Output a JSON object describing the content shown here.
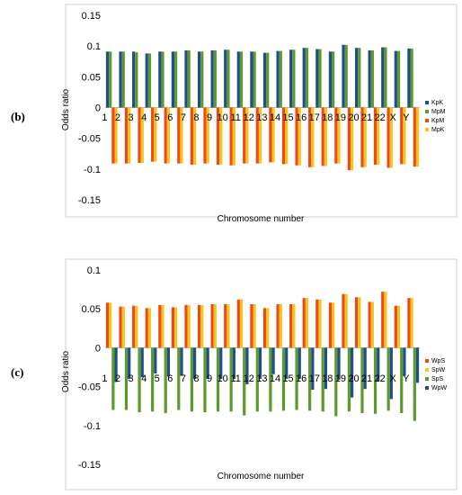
{
  "chart_data": [
    {
      "type": "bar",
      "panel_label": "(b)",
      "ylabel": "Odds ratio",
      "xlabel": "Chromosome number",
      "ylim": [
        -0.15,
        0.15
      ],
      "yticks": [
        "0.15",
        "0.1",
        "0.05",
        "0",
        "-0.05",
        "-0.1",
        "-0.15"
      ],
      "categories": [
        "1",
        "2",
        "3",
        "4",
        "5",
        "6",
        "7",
        "8",
        "9",
        "10",
        "11",
        "12",
        "13",
        "14",
        "15",
        "16",
        "17",
        "18",
        "19",
        "20",
        "21",
        "22",
        "X",
        "Y"
      ],
      "legend_position": "right",
      "series": [
        {
          "name": "KpK",
          "color": "#1f4e8c",
          "values": [
            0.091,
            0.091,
            0.091,
            0.088,
            0.091,
            0.091,
            0.093,
            0.091,
            0.093,
            0.094,
            0.091,
            0.091,
            0.089,
            0.092,
            0.094,
            0.097,
            0.095,
            0.091,
            0.102,
            0.097,
            0.093,
            0.098,
            0.092,
            0.096
          ]
        },
        {
          "name": "MpM",
          "color": "#5c9a2c",
          "values": [
            0.091,
            0.091,
            0.09,
            0.088,
            0.091,
            0.091,
            0.093,
            0.091,
            0.093,
            0.094,
            0.091,
            0.091,
            0.089,
            0.092,
            0.094,
            0.097,
            0.095,
            0.091,
            0.102,
            0.097,
            0.093,
            0.098,
            0.092,
            0.096
          ]
        },
        {
          "name": "KpM",
          "color": "#f04a14",
          "values": [
            -0.091,
            -0.091,
            -0.09,
            -0.088,
            -0.091,
            -0.091,
            -0.093,
            -0.091,
            -0.093,
            -0.094,
            -0.091,
            -0.091,
            -0.089,
            -0.092,
            -0.094,
            -0.097,
            -0.095,
            -0.091,
            -0.102,
            -0.097,
            -0.093,
            -0.098,
            -0.092,
            -0.096
          ]
        },
        {
          "name": "MpK",
          "color": "#f6c41c",
          "values": [
            -0.091,
            -0.091,
            -0.09,
            -0.088,
            -0.091,
            -0.091,
            -0.093,
            -0.091,
            -0.093,
            -0.094,
            -0.091,
            -0.091,
            -0.089,
            -0.092,
            -0.094,
            -0.097,
            -0.095,
            -0.091,
            -0.102,
            -0.097,
            -0.093,
            -0.098,
            -0.092,
            -0.096
          ]
        }
      ]
    },
    {
      "type": "bar",
      "panel_label": "(c)",
      "ylabel": "Odds ratio",
      "xlabel": "Chromosome number",
      "ylim": [
        -0.15,
        0.1
      ],
      "yticks": [
        "0.1",
        "0.05",
        "0",
        "-0.05",
        "-0.1",
        "-0.15"
      ],
      "categories": [
        "1",
        "2",
        "3",
        "4",
        "5",
        "6",
        "7",
        "8",
        "9",
        "10",
        "11",
        "12",
        "13",
        "14",
        "15",
        "16",
        "17",
        "18",
        "19",
        "20",
        "21",
        "22",
        "X",
        "Y"
      ],
      "legend_position": "right",
      "series": [
        {
          "name": "WpS",
          "color": "#f04a14",
          "values": [
            0.058,
            0.053,
            0.054,
            0.051,
            0.055,
            0.052,
            0.055,
            0.055,
            0.056,
            0.056,
            0.062,
            0.056,
            0.051,
            0.056,
            0.056,
            0.064,
            0.062,
            0.058,
            0.069,
            0.065,
            0.059,
            0.072,
            0.054,
            0.064
          ]
        },
        {
          "name": "SpW",
          "color": "#f6c41c",
          "values": [
            0.058,
            0.053,
            0.054,
            0.051,
            0.055,
            0.052,
            0.055,
            0.055,
            0.056,
            0.056,
            0.062,
            0.056,
            0.051,
            0.056,
            0.056,
            0.064,
            0.062,
            0.058,
            0.069,
            0.065,
            0.059,
            0.072,
            0.054,
            0.064
          ]
        },
        {
          "name": "SpS",
          "color": "#5c9a2c",
          "values": [
            -0.08,
            -0.08,
            -0.083,
            -0.082,
            -0.084,
            -0.08,
            -0.082,
            -0.083,
            -0.082,
            -0.082,
            -0.087,
            -0.082,
            -0.082,
            -0.081,
            -0.08,
            -0.081,
            -0.082,
            -0.088,
            -0.082,
            -0.084,
            -0.085,
            -0.081,
            -0.084,
            -0.094
          ]
        },
        {
          "name": "WpW",
          "color": "#1f4e8c",
          "values": [
            -0.044,
            -0.04,
            -0.038,
            -0.033,
            -0.037,
            -0.036,
            -0.04,
            -0.04,
            -0.04,
            -0.04,
            -0.047,
            -0.04,
            -0.034,
            -0.04,
            -0.04,
            -0.054,
            -0.053,
            -0.041,
            -0.064,
            -0.053,
            -0.043,
            -0.066,
            -0.036,
            -0.045
          ]
        }
      ]
    }
  ]
}
